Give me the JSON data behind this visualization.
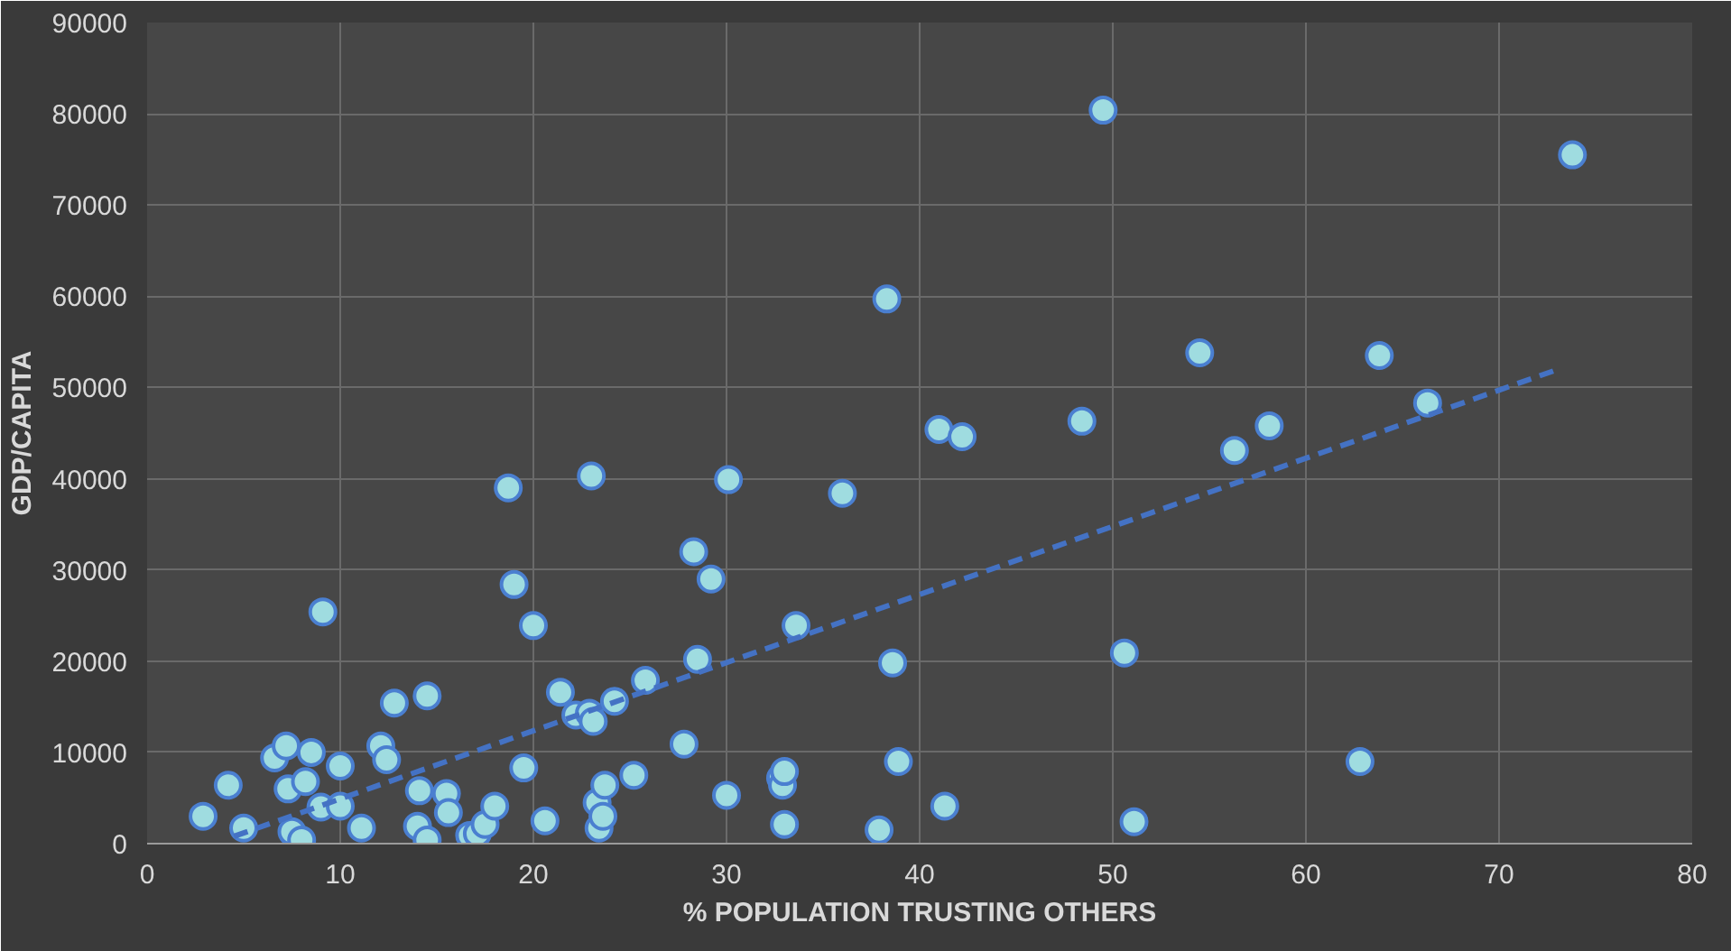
{
  "chart_data": {
    "type": "scatter",
    "xlabel": "% POPULATION TRUSTING OTHERS",
    "ylabel": "GDP/CAPITA",
    "xlim": [
      0,
      80
    ],
    "xticks": [
      0,
      10,
      20,
      30,
      40,
      50,
      60,
      70,
      80
    ],
    "ylim": [
      0,
      90000
    ],
    "yticks": [
      0,
      10000,
      20000,
      30000,
      40000,
      50000,
      60000,
      70000,
      80000,
      90000
    ],
    "grid": true,
    "marker": "circle",
    "series": [
      {
        "color": "#9fdce0",
        "x": [
          2.9,
          4.2,
          5.0,
          6.6,
          7.2,
          7.3,
          7.5,
          8.0,
          8.2,
          8.5,
          9.0,
          9.1,
          10.0,
          10.0,
          11.1,
          12.1,
          12.4,
          12.8,
          14.1,
          14.0,
          14.5,
          14.5,
          15.5,
          15.6,
          16.7,
          17.1,
          17.5,
          18.0,
          18.7,
          19.0,
          19.5,
          20.0,
          20.6,
          21.4,
          22.2,
          22.9,
          23.0,
          23.1,
          23.3,
          23.4,
          23.6,
          23.7,
          24.2,
          25.2,
          25.8,
          27.8,
          28.3,
          28.5,
          29.2,
          30.0,
          30.1,
          32.8,
          32.9,
          33.0,
          33.0,
          33.6,
          36.0,
          37.9,
          38.3,
          38.6,
          38.9,
          41.0,
          41.3,
          42.2,
          48.4,
          49.5,
          50.6,
          51.1,
          54.5,
          56.3,
          58.1,
          62.8,
          63.8,
          66.3,
          73.8
        ],
        "values": [
          3000,
          6400,
          1700,
          9400,
          10700,
          6000,
          1300,
          400,
          6800,
          10000,
          4000,
          25400,
          8500,
          4100,
          1700,
          10700,
          9200,
          15400,
          5800,
          1900,
          16200,
          400,
          5500,
          3400,
          900,
          1100,
          2100,
          4100,
          39000,
          28400,
          8300,
          23900,
          2500,
          16600,
          14100,
          14300,
          40300,
          13400,
          4500,
          1700,
          3000,
          6400,
          15600,
          7500,
          17900,
          10900,
          32000,
          20200,
          29000,
          5300,
          39900,
          7200,
          6400,
          2100,
          7900,
          23900,
          38400,
          1500,
          59700,
          19800,
          9000,
          45400,
          4100,
          44600,
          46300,
          80400,
          20900,
          2400,
          53800,
          43100,
          45800,
          9000,
          53500,
          48300,
          75500
        ]
      },
      {
        "type": "line",
        "color": "#4472c4",
        "line_style": "dashed",
        "marker": "none",
        "x": [
          4.5,
          73.2
        ],
        "values": [
          800,
          52100
        ]
      }
    ]
  }
}
